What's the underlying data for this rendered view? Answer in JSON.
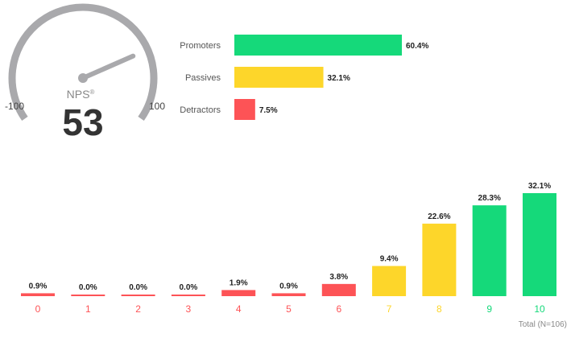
{
  "colors": {
    "promoter": "#15d97a",
    "passive": "#fdd62a",
    "detractor": "#fd5356",
    "gauge": "#a9a9ac",
    "text": "#333333"
  },
  "gauge": {
    "label": "NPS",
    "mark": "®",
    "score": "53",
    "value": 53,
    "min": -100,
    "max": 100,
    "min_label": "-100",
    "max_label": "100"
  },
  "chart_data": [
    {
      "type": "bar",
      "orientation": "horizontal",
      "categories": [
        "Promoters",
        "Passives",
        "Detractors"
      ],
      "values": [
        60.4,
        32.1,
        7.5
      ],
      "value_labels": [
        "60.4%",
        "32.1%",
        "7.5%"
      ],
      "colors": [
        "#15d97a",
        "#fdd62a",
        "#fd5356"
      ]
    },
    {
      "type": "bar",
      "categories": [
        "0",
        "1",
        "2",
        "3",
        "4",
        "5",
        "6",
        "7",
        "8",
        "9",
        "10"
      ],
      "values": [
        0.9,
        0.0,
        0.0,
        0.0,
        1.9,
        0.9,
        3.8,
        9.4,
        22.6,
        28.3,
        32.1
      ],
      "value_labels": [
        "0.9%",
        "0.0%",
        "0.0%",
        "0.0%",
        "1.9%",
        "0.9%",
        "3.8%",
        "9.4%",
        "22.6%",
        "28.3%",
        "32.1%"
      ],
      "groups": [
        "detractor",
        "detractor",
        "detractor",
        "detractor",
        "detractor",
        "detractor",
        "detractor",
        "passive",
        "passive",
        "promoter",
        "promoter"
      ],
      "footer": "Total (N=106)"
    }
  ]
}
